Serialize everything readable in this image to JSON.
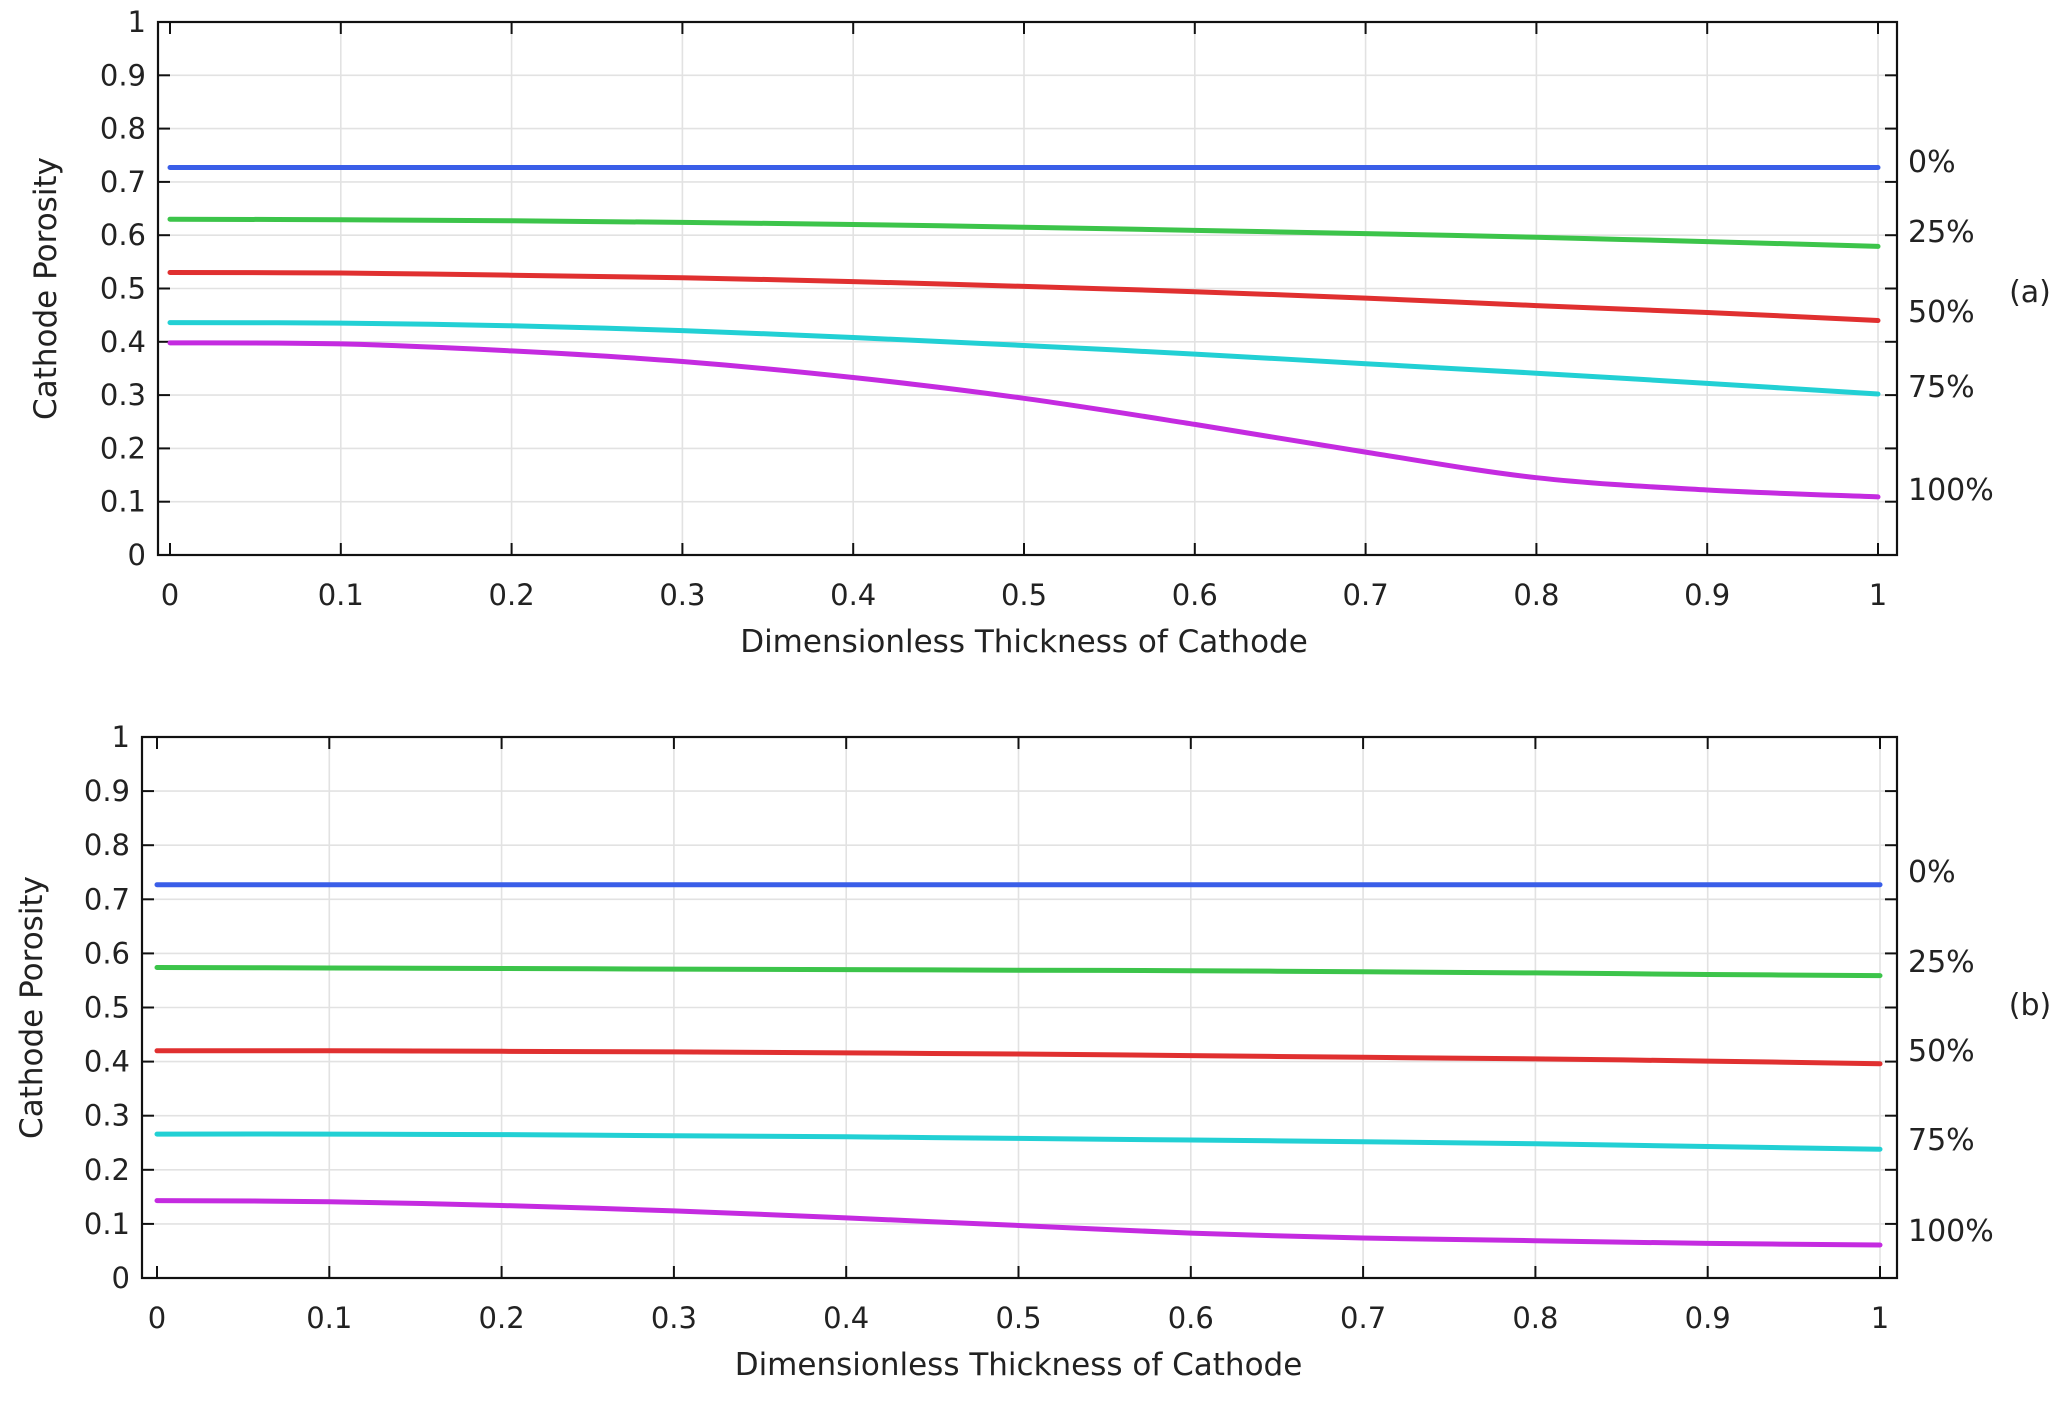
{
  "chart_data": [
    {
      "type": "line",
      "panel_label": "(a)",
      "xlabel": "Dimensionless Thickness of Cathode",
      "ylabel": "Cathode Porosity",
      "xlim": [
        0,
        1
      ],
      "ylim": [
        0,
        1
      ],
      "grid": true,
      "x_ticks": [
        "0",
        "0.1",
        "0.2",
        "0.3",
        "0.4",
        "0.5",
        "0.6",
        "0.7",
        "0.8",
        "0.9",
        "1"
      ],
      "y_ticks": [
        "0",
        "0.1",
        "0.2",
        "0.3",
        "0.4",
        "0.5",
        "0.6",
        "0.7",
        "0.8",
        "0.9",
        "1"
      ],
      "x": [
        0,
        0.1,
        0.2,
        0.3,
        0.4,
        0.5,
        0.6,
        0.7,
        0.8,
        0.9,
        1.0
      ],
      "series": [
        {
          "name": "0%",
          "color": "#3a5ee8",
          "values": [
            0.727,
            0.727,
            0.727,
            0.727,
            0.727,
            0.727,
            0.727,
            0.727,
            0.727,
            0.727,
            0.727
          ]
        },
        {
          "name": "25%",
          "color": "#3cc44a",
          "values": [
            0.63,
            0.629,
            0.627,
            0.624,
            0.62,
            0.615,
            0.609,
            0.603,
            0.596,
            0.588,
            0.579
          ]
        },
        {
          "name": "50%",
          "color": "#e03030",
          "values": [
            0.53,
            0.529,
            0.525,
            0.52,
            0.513,
            0.504,
            0.494,
            0.482,
            0.468,
            0.455,
            0.44
          ]
        },
        {
          "name": "75%",
          "color": "#22d0d4",
          "values": [
            0.436,
            0.435,
            0.43,
            0.421,
            0.408,
            0.393,
            0.377,
            0.359,
            0.341,
            0.322,
            0.302
          ]
        },
        {
          "name": "100%",
          "color": "#c42be0",
          "values": [
            0.398,
            0.396,
            0.383,
            0.363,
            0.333,
            0.294,
            0.245,
            0.193,
            0.145,
            0.122,
            0.109
          ]
        }
      ]
    },
    {
      "type": "line",
      "panel_label": "(b)",
      "xlabel": "Dimensionless Thickness of Cathode",
      "ylabel": "Cathode Porosity",
      "xlim": [
        0,
        1
      ],
      "ylim": [
        0,
        1
      ],
      "grid": true,
      "x_ticks": [
        "0",
        "0.1",
        "0.2",
        "0.3",
        "0.4",
        "0.5",
        "0.6",
        "0.7",
        "0.8",
        "0.9",
        "1"
      ],
      "y_ticks": [
        "0",
        "0.1",
        "0.2",
        "0.3",
        "0.4",
        "0.5",
        "0.6",
        "0.7",
        "0.8",
        "0.9",
        "1"
      ],
      "x": [
        0,
        0.1,
        0.2,
        0.3,
        0.4,
        0.5,
        0.6,
        0.7,
        0.8,
        0.9,
        1.0
      ],
      "series": [
        {
          "name": "0%",
          "color": "#3a5ee8",
          "values": [
            0.727,
            0.727,
            0.727,
            0.727,
            0.727,
            0.727,
            0.727,
            0.727,
            0.727,
            0.727,
            0.727
          ]
        },
        {
          "name": "25%",
          "color": "#3cc44a",
          "values": [
            0.574,
            0.573,
            0.572,
            0.571,
            0.57,
            0.569,
            0.568,
            0.566,
            0.564,
            0.561,
            0.559
          ]
        },
        {
          "name": "50%",
          "color": "#e03030",
          "values": [
            0.42,
            0.42,
            0.419,
            0.418,
            0.416,
            0.414,
            0.411,
            0.408,
            0.405,
            0.401,
            0.396
          ]
        },
        {
          "name": "75%",
          "color": "#22d0d4",
          "values": [
            0.266,
            0.266,
            0.265,
            0.263,
            0.261,
            0.258,
            0.255,
            0.252,
            0.248,
            0.243,
            0.238
          ]
        },
        {
          "name": "100%",
          "color": "#c42be0",
          "values": [
            0.143,
            0.141,
            0.134,
            0.124,
            0.111,
            0.097,
            0.083,
            0.074,
            0.069,
            0.064,
            0.061
          ]
        }
      ]
    }
  ]
}
